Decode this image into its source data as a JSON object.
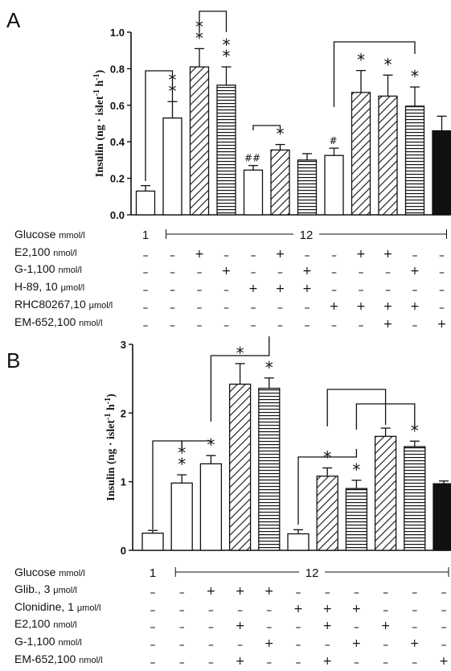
{
  "chart_data": [
    {
      "panel": "A",
      "type": "bar",
      "ylabel": "Insulin (ng · islet-1 h-1)",
      "ylim": [
        0,
        1.0
      ],
      "yticks": [
        "0.0",
        "0.2",
        "0.4",
        "0.6",
        "0.8",
        "1.0"
      ],
      "fill_patterns": [
        "open",
        "open",
        "diagonal",
        "horizontal",
        "open",
        "diagonal",
        "horizontal",
        "open",
        "diagonal",
        "diagonal",
        "horizontal",
        "solid"
      ],
      "values": [
        0.13,
        0.53,
        0.81,
        0.71,
        0.245,
        0.355,
        0.3,
        0.325,
        0.67,
        0.65,
        0.595,
        0.46
      ],
      "errors": [
        0.03,
        0.09,
        0.1,
        0.1,
        0.025,
        0.03,
        0.035,
        0.04,
        0.12,
        0.115,
        0.105,
        0.08
      ],
      "significance": [
        "",
        "**",
        "**",
        "**",
        "#",
        "*",
        "",
        "#",
        "*",
        "*",
        "*",
        ""
      ],
      "conditions": [
        {
          "label": "Glucose",
          "unit": "mmol/l",
          "values": [
            "1",
            "12"
          ]
        },
        {
          "label": "E2,100",
          "unit": "nmol/l",
          "signs": [
            "-",
            "-",
            "+",
            "-",
            "-",
            "+",
            "-",
            "-",
            "+",
            "+",
            "-",
            "-"
          ]
        },
        {
          "label": "G-1,100",
          "unit": "nmol/l",
          "signs": [
            "-",
            "-",
            "-",
            "+",
            "-",
            "-",
            "+",
            "-",
            "-",
            "-",
            "+",
            "-"
          ]
        },
        {
          "label": "H-89, 10",
          "unit": "μmol/l",
          "signs": [
            "-",
            "-",
            "-",
            "-",
            "+",
            "+",
            "+",
            "-",
            "-",
            "-",
            "-",
            "-"
          ]
        },
        {
          "label": "RHC80267,10",
          "unit": "μmol/l",
          "signs": [
            "-",
            "-",
            "-",
            "-",
            "-",
            "-",
            "-",
            "+",
            "+",
            "+",
            "+",
            "-"
          ]
        },
        {
          "label": "EM-652,100",
          "unit": "nmol/l",
          "signs": [
            "-",
            "-",
            "-",
            "-",
            "-",
            "-",
            "-",
            "-",
            "-",
            "+",
            "-",
            "+"
          ]
        }
      ]
    },
    {
      "panel": "B",
      "type": "bar",
      "ylabel": "Insulin (ng · islet-1 h-1)",
      "ylim": [
        0,
        3
      ],
      "yticks": [
        "0",
        "1",
        "2",
        "3"
      ],
      "fill_patterns": [
        "open",
        "open",
        "open",
        "diagonal",
        "horizontal",
        "open",
        "diagonal",
        "horizontal",
        "diagonal",
        "horizontal",
        "solid"
      ],
      "values": [
        0.25,
        0.98,
        1.26,
        2.42,
        2.36,
        0.24,
        1.08,
        0.9,
        1.66,
        1.51,
        0.97
      ],
      "errors": [
        0.04,
        0.12,
        0.12,
        0.3,
        0.15,
        0.06,
        0.12,
        0.12,
        0.12,
        0.08,
        0.04
      ],
      "significance": [
        "",
        "**",
        "*",
        "*",
        "*",
        "",
        "*",
        "*",
        "",
        "*",
        ""
      ],
      "conditions": [
        {
          "label": "Glucose",
          "unit": "mmol/l",
          "values": [
            "1",
            "12"
          ]
        },
        {
          "label": "Glib., 3",
          "unit": "μmol/l",
          "signs": [
            "-",
            "-",
            "+",
            "+",
            "+",
            "-",
            "-",
            "-",
            "-",
            "-",
            "-"
          ]
        },
        {
          "label": "Clonidine, 1",
          "unit": "μmol/l",
          "signs": [
            "-",
            "-",
            "-",
            "-",
            "-",
            "+",
            "+",
            "+",
            "-",
            "-",
            "-"
          ]
        },
        {
          "label": "E2,100",
          "unit": "nmol/l",
          "signs": [
            "-",
            "-",
            "-",
            "+",
            "-",
            "-",
            "+",
            "-",
            "+",
            "-",
            "-"
          ]
        },
        {
          "label": "G-1,100",
          "unit": "nmol/l",
          "signs": [
            "-",
            "-",
            "-",
            "-",
            "+",
            "-",
            "-",
            "+",
            "-",
            "+",
            "-"
          ]
        },
        {
          "label": "EM-652,100",
          "unit": "nmol/l",
          "signs": [
            "-",
            "-",
            "-",
            "+",
            "-",
            "-",
            "+",
            "-",
            "-",
            "-",
            "+"
          ]
        }
      ]
    }
  ]
}
